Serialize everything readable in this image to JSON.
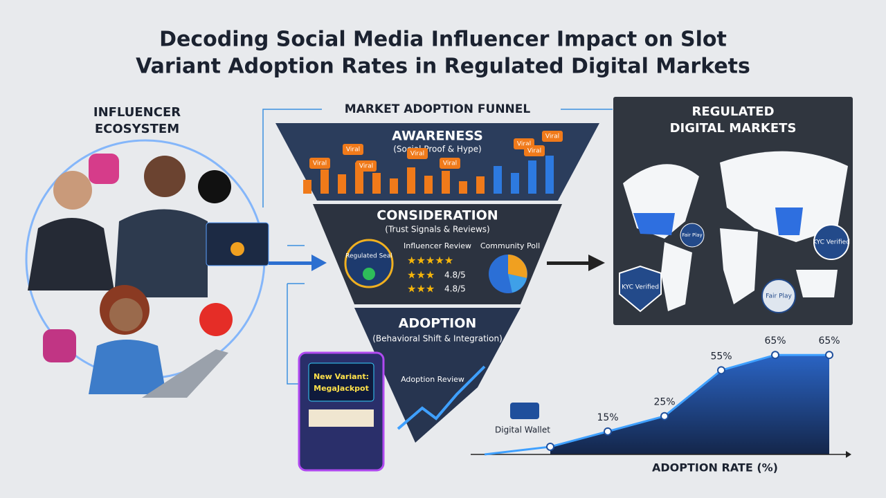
{
  "header": {
    "title_lines": [
      "Decoding Social Media Influencer Impact on Slot",
      "Variant Adoption Rates in Regulated Digital Markets"
    ]
  },
  "ecosystem": {
    "title_lines": [
      "INFLUENCER",
      "ECOSYSTEM"
    ]
  },
  "funnel": {
    "title": "MARKET ADOPTION FUNNEL",
    "stages": [
      {
        "name": "AWARENESS",
        "subtitle": "(Social Proof & Hype)"
      },
      {
        "name": "CONSIDERATION",
        "subtitle": "(Trust Signals & Reviews)"
      },
      {
        "name": "ADOPTION",
        "subtitle": "(Behavioral Shift & Integration)"
      }
    ],
    "badges": [
      "Viral",
      "Viral",
      "Viral",
      "Viral",
      "Viral",
      "Viral",
      "Viral",
      "Viral"
    ],
    "seal": "Regulated Seal",
    "review_title": "Influencer Review",
    "poll_title": "Community Poll",
    "ratings": [
      "4.8/5",
      "4.8/5"
    ],
    "adoption_review": "Adoption Review",
    "slot_text_lines": [
      "New Variant:",
      "MegaJackpot"
    ]
  },
  "markets": {
    "title_lines": [
      "REGULATED",
      "DIGITAL MARKETS"
    ],
    "badges": [
      "Fair Play",
      "KYC Verified",
      "KYC Verified",
      "Fair Play"
    ]
  },
  "adoption_chart": {
    "type": "area",
    "x_label": "ADOPTION RATE (%)",
    "wallet_label": "Digital Wallet",
    "values": [
      5,
      15,
      25,
      55,
      65,
      65
    ],
    "value_labels": [
      null,
      "15%",
      "25%",
      "55%",
      "65%",
      "65%"
    ],
    "ylim": [
      0,
      80
    ],
    "color": "#1f4f9c"
  }
}
